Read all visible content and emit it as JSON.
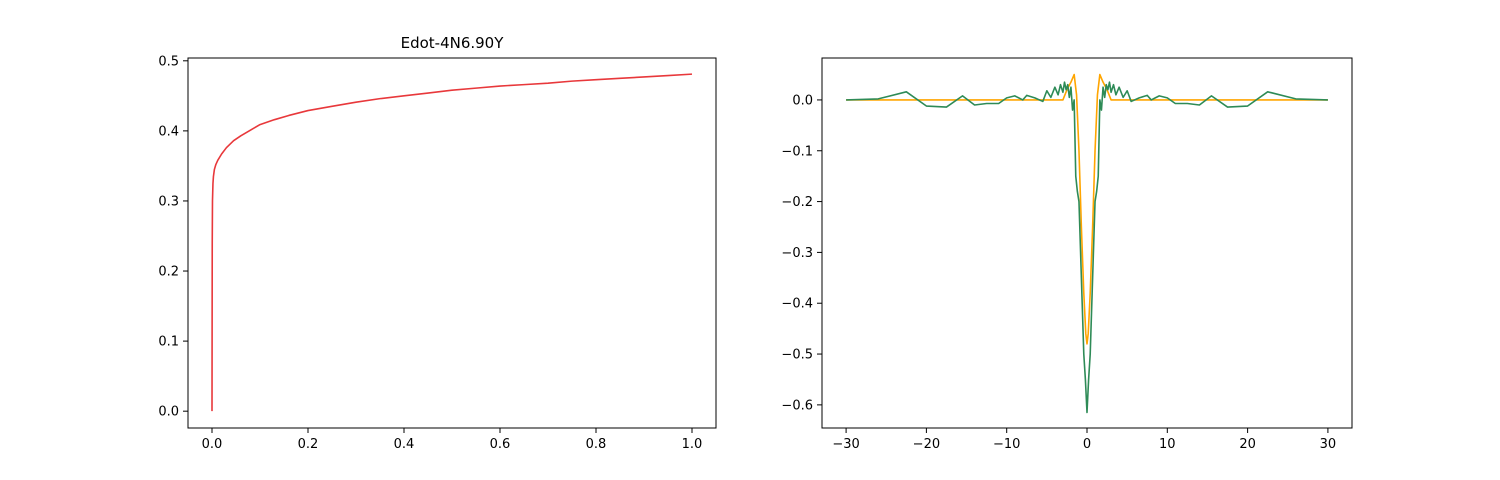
{
  "chart_data": [
    {
      "type": "line",
      "title": "Edot-4N6.90Y",
      "xlabel": "",
      "ylabel": "",
      "xlim": [
        -0.05,
        1.05
      ],
      "ylim": [
        -0.024,
        0.504
      ],
      "x_ticks": [
        0.0,
        0.2,
        0.4,
        0.6,
        0.8,
        1.0
      ],
      "x_tick_labels": [
        "0.0",
        "0.2",
        "0.4",
        "0.6",
        "0.8",
        "1.0"
      ],
      "y_ticks": [
        0.0,
        0.1,
        0.2,
        0.3,
        0.4,
        0.5
      ],
      "y_tick_labels": [
        "0.0",
        "0.1",
        "0.2",
        "0.3",
        "0.4",
        "0.5"
      ],
      "grid": false,
      "series": [
        {
          "color": "#e8383b",
          "x": [
            0,
            0.0005,
            0.001,
            0.002,
            0.003,
            0.005,
            0.008,
            0.012,
            0.02,
            0.03,
            0.045,
            0.06,
            0.08,
            0.1,
            0.13,
            0.16,
            0.2,
            0.25,
            0.3,
            0.35,
            0.4,
            0.45,
            0.5,
            0.55,
            0.6,
            0.65,
            0.7,
            0.75,
            0.8,
            0.85,
            0.9,
            0.95,
            1.0
          ],
          "y": [
            0.0,
            0.24,
            0.3,
            0.325,
            0.335,
            0.345,
            0.352,
            0.358,
            0.367,
            0.376,
            0.386,
            0.393,
            0.401,
            0.409,
            0.416,
            0.422,
            0.429,
            0.435,
            0.441,
            0.446,
            0.45,
            0.454,
            0.458,
            0.461,
            0.464,
            0.466,
            0.468,
            0.471,
            0.473,
            0.475,
            0.477,
            0.479,
            0.481
          ]
        }
      ]
    },
    {
      "type": "line",
      "title": "",
      "xlabel": "",
      "ylabel": "",
      "xlim": [
        -33.0,
        33.0
      ],
      "ylim": [
        -0.6455,
        0.0825
      ],
      "x_ticks": [
        -30,
        -20,
        -10,
        0,
        10,
        20,
        30
      ],
      "x_tick_labels": [
        "−30",
        "−20",
        "−10",
        "0",
        "10",
        "20",
        "30"
      ],
      "y_ticks": [
        0.0,
        -0.1,
        -0.2,
        -0.3,
        -0.4,
        -0.5,
        -0.6
      ],
      "y_tick_labels": [
        "0.0",
        "−0.1",
        "−0.2",
        "−0.3",
        "−0.4",
        "−0.5",
        "−0.6"
      ],
      "grid": false,
      "series": [
        {
          "color": "#ffa500",
          "x": [
            -30,
            -3,
            -2.5,
            -2,
            -1.6,
            -1.3,
            -1.0,
            -0.7,
            -0.4,
            -0.15,
            0,
            0.15,
            0.4,
            0.7,
            1.0,
            1.3,
            1.6,
            2,
            2.5,
            3,
            30
          ],
          "y": [
            0.0,
            0.0,
            0.02,
            0.035,
            0.05,
            0.01,
            -0.1,
            -0.25,
            -0.38,
            -0.46,
            -0.48,
            -0.46,
            -0.38,
            -0.25,
            -0.1,
            0.01,
            0.05,
            0.035,
            0.02,
            0.0,
            0.0
          ]
        },
        {
          "color": "#2e8b57",
          "x": [
            -30,
            -26,
            -22.5,
            -20,
            -17.5,
            -15.5,
            -14,
            -12.5,
            -11,
            -10,
            -9,
            -8.5,
            -8,
            -7.5,
            -6.5,
            -5.5,
            -5,
            -4.5,
            -4,
            -3.6,
            -3.3,
            -3.0,
            -2.8,
            -2.6,
            -2.4,
            -2.2,
            -2.0,
            -1.8,
            -1.6,
            -1.4,
            -1.2,
            -1.0,
            -0.8,
            -0.6,
            -0.4,
            -0.2,
            0,
            0.2,
            0.4,
            0.6,
            0.8,
            1.0,
            1.2,
            1.4,
            1.6,
            1.8,
            2.0,
            2.2,
            2.4,
            2.6,
            2.8,
            3.0,
            3.3,
            3.6,
            4,
            4.5,
            5,
            5.5,
            6.5,
            7.5,
            8,
            8.5,
            9,
            10,
            11,
            12.5,
            14,
            15.5,
            17.5,
            20,
            22.5,
            26,
            30
          ],
          "y": [
            0.0,
            0.002,
            0.016,
            -0.012,
            -0.014,
            0.008,
            -0.01,
            -0.007,
            -0.007,
            0.004,
            0.008,
            0.004,
            0.0,
            0.009,
            0.004,
            -0.003,
            0.018,
            0.005,
            0.025,
            0.01,
            0.03,
            0.015,
            0.035,
            0.02,
            0.03,
            0.005,
            0.025,
            -0.02,
            0.0,
            -0.15,
            -0.18,
            -0.2,
            -0.3,
            -0.4,
            -0.5,
            -0.55,
            -0.615,
            -0.55,
            -0.5,
            -0.4,
            -0.3,
            -0.2,
            -0.18,
            -0.15,
            0.0,
            -0.02,
            0.025,
            0.005,
            0.03,
            0.02,
            0.035,
            0.015,
            0.03,
            0.01,
            0.025,
            0.005,
            0.018,
            -0.003,
            0.004,
            0.009,
            0.0,
            0.004,
            0.008,
            0.004,
            -0.007,
            -0.007,
            -0.01,
            0.008,
            -0.014,
            -0.012,
            0.016,
            0.002,
            0.0
          ]
        }
      ]
    }
  ]
}
